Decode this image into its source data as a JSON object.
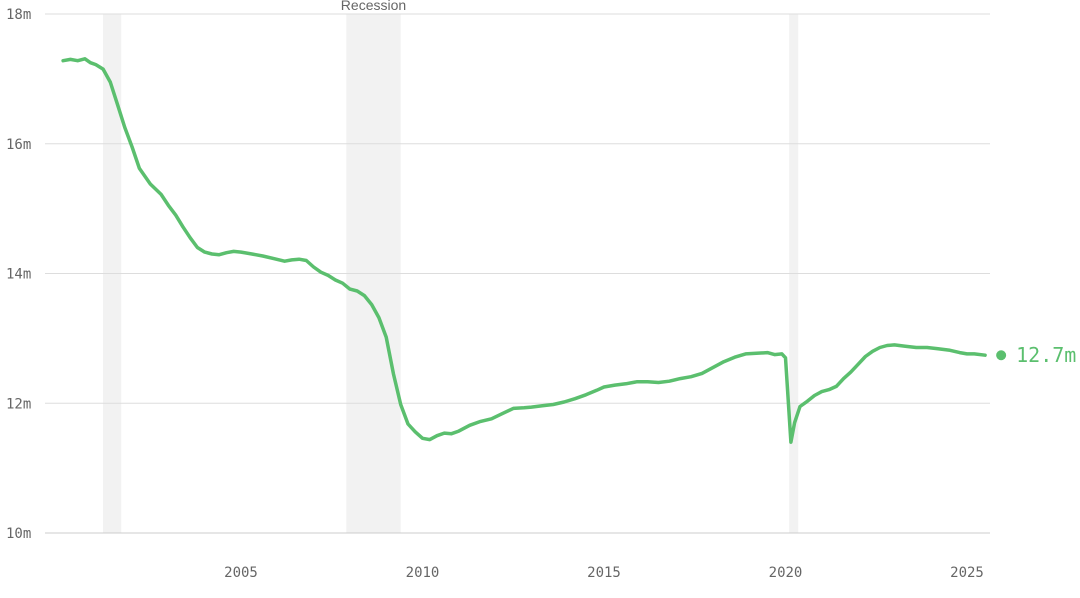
{
  "chart_data": {
    "type": "line",
    "title": "",
    "xlabel": "",
    "ylabel": "",
    "xlim": [
      2000.0,
      2025.7
    ],
    "ylim": [
      10,
      18
    ],
    "y_ticks": [
      {
        "value": 10,
        "label": "10m"
      },
      {
        "value": 12,
        "label": "12m"
      },
      {
        "value": 14,
        "label": "14m"
      },
      {
        "value": 16,
        "label": "16m"
      },
      {
        "value": 18,
        "label": "18m"
      }
    ],
    "x_ticks": [
      {
        "value": 2005,
        "label": "2005"
      },
      {
        "value": 2010,
        "label": "2010"
      },
      {
        "value": 2015,
        "label": "2015"
      },
      {
        "value": 2020,
        "label": "2020"
      },
      {
        "value": 2025,
        "label": "2025"
      }
    ],
    "recessions": [
      {
        "start": 2001.2,
        "end": 2001.7,
        "label": ""
      },
      {
        "start": 2007.9,
        "end": 2009.4,
        "label": "Recession"
      },
      {
        "start": 2020.1,
        "end": 2020.35,
        "label": ""
      }
    ],
    "grid": true,
    "colors": {
      "line": "#5bbf6e",
      "grid": "#dddddd",
      "recession": "#f2f2f2",
      "axis_text": "#666666"
    },
    "end_label": "12.7m",
    "series": [
      {
        "x": [
          2000.1,
          2000.3,
          2000.5,
          2000.7,
          2000.85,
          2001.0,
          2001.2,
          2001.4,
          2001.6,
          2001.8,
          2002.0,
          2002.2,
          2002.5,
          2002.8,
          2003.0,
          2003.2,
          2003.4,
          2003.6,
          2003.8,
          2004.0,
          2004.2,
          2004.4,
          2004.6,
          2004.8,
          2005.0,
          2005.3,
          2005.6,
          2005.9,
          2006.2,
          2006.4,
          2006.6,
          2006.8,
          2007.0,
          2007.2,
          2007.4,
          2007.6,
          2007.8,
          2008.0,
          2008.2,
          2008.4,
          2008.6,
          2008.8,
          2009.0,
          2009.2,
          2009.4,
          2009.6,
          2009.8,
          2010.0,
          2010.2,
          2010.4,
          2010.6,
          2010.8,
          2011.0,
          2011.3,
          2011.6,
          2011.9,
          2012.2,
          2012.5,
          2012.8,
          2013.0,
          2013.3,
          2013.6,
          2013.9,
          2014.2,
          2014.5,
          2014.8,
          2015.0,
          2015.3,
          2015.6,
          2015.9,
          2016.2,
          2016.5,
          2016.8,
          2017.1,
          2017.4,
          2017.7,
          2018.0,
          2018.3,
          2018.6,
          2018.9,
          2019.2,
          2019.5,
          2019.7,
          2019.9,
          2020.0,
          2020.15,
          2020.25,
          2020.4,
          2020.6,
          2020.8,
          2021.0,
          2021.2,
          2021.4,
          2021.6,
          2021.8,
          2022.0,
          2022.2,
          2022.4,
          2022.6,
          2022.8,
          2023.0,
          2023.3,
          2023.6,
          2023.9,
          2024.2,
          2024.5,
          2024.8,
          2025.0,
          2025.2,
          2025.5
        ],
        "y": [
          17.28,
          17.3,
          17.28,
          17.31,
          17.25,
          17.22,
          17.15,
          16.95,
          16.6,
          16.25,
          15.95,
          15.62,
          15.38,
          15.22,
          15.05,
          14.9,
          14.72,
          14.55,
          14.4,
          14.33,
          14.3,
          14.29,
          14.32,
          14.34,
          14.33,
          14.3,
          14.27,
          14.23,
          14.19,
          14.21,
          14.22,
          14.2,
          14.1,
          14.02,
          13.97,
          13.9,
          13.85,
          13.76,
          13.73,
          13.66,
          13.52,
          13.32,
          13.02,
          12.45,
          11.98,
          11.68,
          11.56,
          11.46,
          11.44,
          11.5,
          11.54,
          11.53,
          11.57,
          11.66,
          11.72,
          11.76,
          11.84,
          11.92,
          11.93,
          11.94,
          11.96,
          11.98,
          12.02,
          12.07,
          12.13,
          12.2,
          12.25,
          12.28,
          12.3,
          12.33,
          12.33,
          12.32,
          12.34,
          12.38,
          12.41,
          12.46,
          12.55,
          12.64,
          12.71,
          12.76,
          12.77,
          12.78,
          12.75,
          12.76,
          12.7,
          11.4,
          11.7,
          11.95,
          12.03,
          12.12,
          12.18,
          12.21,
          12.26,
          12.38,
          12.48,
          12.6,
          12.72,
          12.8,
          12.86,
          12.89,
          12.9,
          12.88,
          12.86,
          12.86,
          12.84,
          12.82,
          12.78,
          12.76,
          12.76,
          12.74
        ]
      }
    ]
  }
}
